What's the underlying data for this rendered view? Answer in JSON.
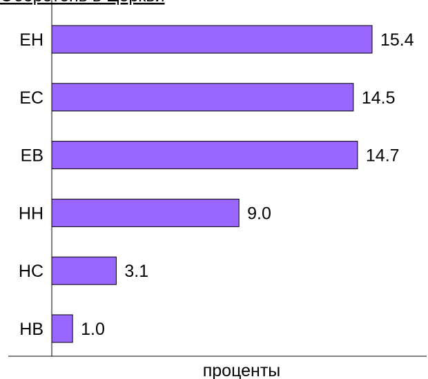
{
  "chart_data": {
    "type": "bar",
    "orientation": "horizontal",
    "title": "Оборотень в Церкви",
    "xlabel": "проценты",
    "ylabel": "",
    "categories": [
      "ЕН",
      "ЕС",
      "ЕВ",
      "НН",
      "НС",
      "НВ"
    ],
    "values": [
      15.4,
      14.5,
      14.7,
      9.0,
      3.1,
      1.0
    ],
    "value_labels": [
      "15.4",
      "14.5",
      "14.7",
      "9.0",
      "3.1",
      "1.0"
    ],
    "xlim": [
      0,
      17
    ],
    "grid": false,
    "legend": "none",
    "bar_color": "#9966ff"
  }
}
